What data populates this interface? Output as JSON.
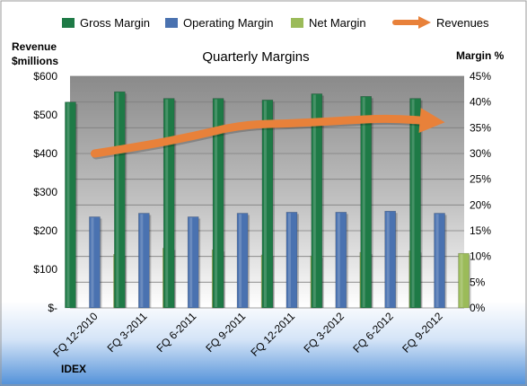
{
  "chart_data": {
    "type": "bar",
    "title": "Quarterly Margins",
    "categories": [
      "FQ 12-2010",
      "FQ 3-2011",
      "FQ 6-2011",
      "FQ 9-2011",
      "FQ 12-2011",
      "FQ 3-2012",
      "FQ 6-2012",
      "FQ 9-2012"
    ],
    "series": [
      {
        "name": "Gross Margin",
        "axis": "right",
        "color": "#1e7a46",
        "values": [
          40.0,
          42.0,
          40.7,
          40.7,
          40.4,
          41.6,
          41.1,
          40.7
        ]
      },
      {
        "name": "Operating Margin",
        "axis": "right",
        "color": "#4a72b0",
        "values": [
          17.7,
          18.4,
          17.7,
          18.4,
          18.6,
          18.6,
          18.8,
          18.4
        ]
      },
      {
        "name": "Net Margin",
        "axis": "right",
        "color": "#9bbb59",
        "values": [
          10.4,
          11.6,
          11.3,
          10.3,
          10.1,
          10.8,
          11.1,
          10.6
        ]
      },
      {
        "name": "Revenues",
        "axis": "left",
        "type": "line",
        "color": "#e8813a",
        "values": [
          400,
          420,
          445,
          475,
          478,
          485,
          492,
          482
        ]
      }
    ],
    "y_left": {
      "label_line1": "Revenue",
      "label_line2": "$millions",
      "range": [
        0,
        600
      ],
      "ticks": [
        "$-",
        "$100",
        "$200",
        "$300",
        "$400",
        "$500",
        "$600"
      ]
    },
    "y_right": {
      "label": "Margin %",
      "range": [
        0,
        45
      ],
      "ticks": [
        "0%",
        "5%",
        "10%",
        "15%",
        "20%",
        "25%",
        "30%",
        "35%",
        "40%",
        "45%"
      ]
    },
    "grid": true,
    "legend": "top"
  },
  "brand": "IDEX"
}
